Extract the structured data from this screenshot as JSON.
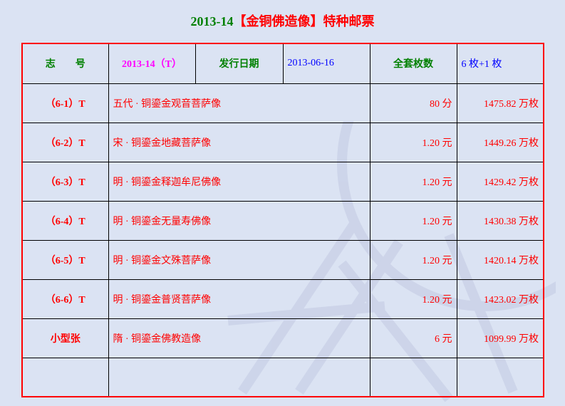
{
  "title": {
    "issue": "2013-14",
    "name": "【金铜佛造像】特种邮票"
  },
  "header": {
    "label_id": "志　　号",
    "id": "2013-14（T）",
    "label_date": "发行日期",
    "date": "2013-06-16",
    "label_count": "全套枚数",
    "count": "6 枚+1 枚"
  },
  "rows": [
    {
      "no": "（6-1）T",
      "name": "五代 · 铜鎏金观音菩萨像",
      "value": "80 分",
      "issued": "1475.82 万枚"
    },
    {
      "no": "（6-2）T",
      "name": "宋 · 铜鎏金地藏菩萨像",
      "value": "1.20 元",
      "issued": "1449.26 万枚"
    },
    {
      "no": "（6-3）T",
      "name": "明 · 铜鎏金释迦牟尼佛像",
      "value": "1.20 元",
      "issued": "1429.42 万枚"
    },
    {
      "no": "（6-4）T",
      "name": "明 · 铜鎏金无量寿佛像",
      "value": "1.20 元",
      "issued": "1430.38 万枚"
    },
    {
      "no": "（6-5）T",
      "name": "明 · 铜鎏金文殊菩萨像",
      "value": "1.20 元",
      "issued": "1420.14 万枚"
    },
    {
      "no": "（6-6）T",
      "name": "明 · 铜鎏金普贤菩萨像",
      "value": "1.20 元",
      "issued": "1423.02 万枚"
    },
    {
      "no": "小型张",
      "name": "隋 · 铜鎏金佛教造像",
      "value": "6 元",
      "issued": "1099.99 万枚"
    }
  ],
  "colors": {
    "background": "#dbe3f3",
    "border": "#ff0000",
    "header_text": "#008000",
    "body_text": "#ff0000"
  }
}
